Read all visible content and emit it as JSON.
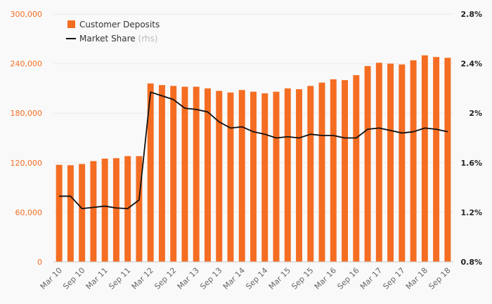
{
  "chart_data": {
    "type": "bar+line",
    "categories": [
      "Mar 10",
      "Jun 10",
      "Sep 10",
      "Dec 10",
      "Mar 11",
      "Jun 11",
      "Sep 11",
      "Dec 11",
      "Mar 12",
      "Jun 12",
      "Sep 12",
      "Dec 12",
      "Mar 13",
      "Jun 13",
      "Sep 13",
      "Dec 13",
      "Mar 14",
      "Jun 14",
      "Sep 14",
      "Dec 14",
      "Mar 15",
      "Jun 15",
      "Sep 15",
      "Dec 15",
      "Mar 16",
      "Jun 16",
      "Sep 16",
      "Dec 16",
      "Mar 17",
      "Jun 17",
      "Sep 17",
      "Dec 17",
      "Mar 18",
      "Jun 18",
      "Sep 18"
    ],
    "x_tick_labels": [
      "Mar 10",
      "Sep 10",
      "Mar 11",
      "Sep 11",
      "Mar 12",
      "Sep 12",
      "Mar 13",
      "Sep 13",
      "Mar 14",
      "Sep 14",
      "Mar 15",
      "Sep 15",
      "Mar 16",
      "Sep 16",
      "Mar 17",
      "Sep 17",
      "Mar 18",
      "Sep 18"
    ],
    "series": [
      {
        "name": "Customer Deposits",
        "kind": "bar",
        "axis": "left",
        "color": "#f46d22",
        "values": [
          117500,
          117000,
          118500,
          122000,
          125000,
          125500,
          128000,
          128000,
          216000,
          214000,
          213000,
          212000,
          212000,
          210000,
          207000,
          205000,
          208000,
          206000,
          204000,
          206000,
          210000,
          209000,
          213000,
          217000,
          221000,
          220000,
          226000,
          237000,
          241000,
          240000,
          239000,
          244000,
          250000,
          248000,
          247000
        ]
      },
      {
        "name": "Market Share",
        "suffix": "(rhs)",
        "kind": "line",
        "axis": "right",
        "color": "#111111",
        "values": [
          1.33,
          1.33,
          1.23,
          1.24,
          1.25,
          1.235,
          1.23,
          1.3,
          2.17,
          2.14,
          2.11,
          2.04,
          2.03,
          2.01,
          1.93,
          1.88,
          1.89,
          1.85,
          1.83,
          1.8,
          1.81,
          1.8,
          1.83,
          1.82,
          1.82,
          1.8,
          1.8,
          1.87,
          1.88,
          1.86,
          1.84,
          1.85,
          1.88,
          1.87,
          1.85
        ]
      }
    ],
    "y_left": {
      "min": 0,
      "max": 300000,
      "ticks": [
        0,
        60000,
        120000,
        180000,
        240000,
        300000
      ],
      "tick_labels": [
        "0",
        "60,000",
        "120,000",
        "180,000",
        "240,000",
        "300,000"
      ]
    },
    "y_right": {
      "min": 0.8,
      "max": 2.8,
      "ticks": [
        0.8,
        1.2,
        1.6,
        2.0,
        2.4,
        2.8
      ],
      "tick_labels": [
        "0.8%",
        "1.2%",
        "1.6%",
        "2%",
        "2.4%",
        "2.8%"
      ]
    },
    "legend_position": "top-left",
    "grid": "horizontal"
  }
}
